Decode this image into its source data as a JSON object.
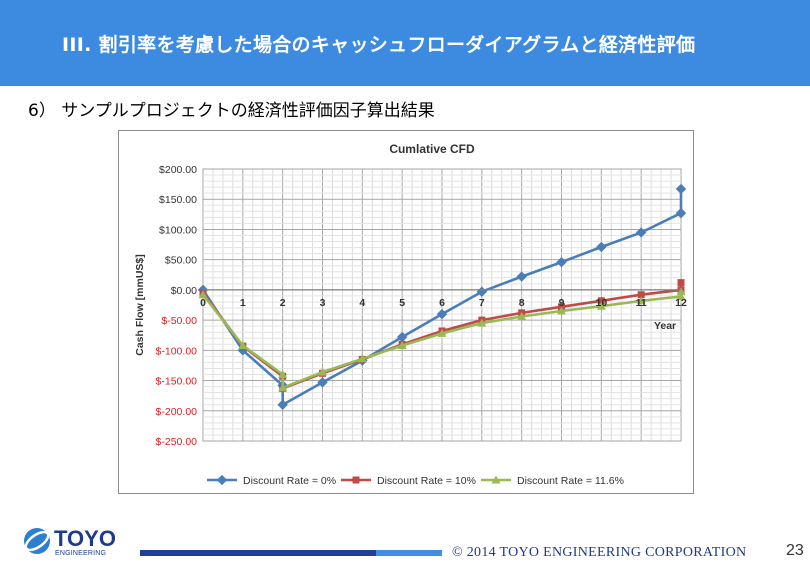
{
  "header": {
    "title": "III. 割引率を考慮した場合のキャッシュフローダイアグラムと経済性評価"
  },
  "subtitle": "6） サンプルプロジェクトの経済性評価因子算出結果",
  "chart_data": {
    "type": "line",
    "title": "Cumlative CFD",
    "xlabel": "Year",
    "ylabel": "Cash Flow [mmUS$]",
    "xlim": [
      0,
      12
    ],
    "ylim": [
      -250,
      200
    ],
    "x_ticks": [
      "0",
      "1",
      "2",
      "3",
      "4",
      "5",
      "6",
      "7",
      "8",
      "9",
      "10",
      "11",
      "12"
    ],
    "y_ticks": [
      "$200.00",
      "$150.00",
      "$100.00",
      "$50.00",
      "$0.00",
      "$-50.00",
      "$-100.00",
      "$-150.00",
      "$-200.00",
      "$-250.00"
    ],
    "legend_position": "bottom",
    "grid": true,
    "series": [
      {
        "name": "Discount Rate = 0%",
        "color": "#4a7ebb",
        "marker": "diamond",
        "x": [
          0,
          1,
          2,
          2,
          3,
          4,
          5,
          6,
          7,
          8,
          9,
          10,
          11,
          12,
          12
        ],
        "y": [
          0,
          -100,
          -158,
          -190,
          -153,
          -117,
          -78,
          -40,
          -3,
          22,
          46,
          71,
          95,
          127,
          167
        ]
      },
      {
        "name": "Discount Rate = 10%",
        "color": "#be4b48",
        "marker": "square",
        "x": [
          0,
          1,
          2,
          2,
          3,
          4,
          5,
          6,
          7,
          8,
          9,
          10,
          11,
          12,
          12
        ],
        "y": [
          -5,
          -93,
          -143,
          -163,
          -138,
          -115,
          -90,
          -68,
          -50,
          -38,
          -28,
          -18,
          -8,
          0,
          12
        ]
      },
      {
        "name": "Discount Rate = 11.6%",
        "color": "#98b954",
        "marker": "triangle",
        "x": [
          0,
          1,
          2,
          2,
          3,
          4,
          5,
          6,
          7,
          8,
          9,
          10,
          11,
          12,
          12
        ],
        "y": [
          -8,
          -92,
          -140,
          -162,
          -136,
          -114,
          -92,
          -72,
          -55,
          -44,
          -35,
          -27,
          -18,
          -11,
          -3
        ]
      }
    ]
  },
  "logo": {
    "name": "TOYO",
    "tagline": "ENGINEERING"
  },
  "footer": {
    "copyright": "© 2014  TOYO  ENGINEERING  CORPORATION",
    "page_number": "23"
  }
}
